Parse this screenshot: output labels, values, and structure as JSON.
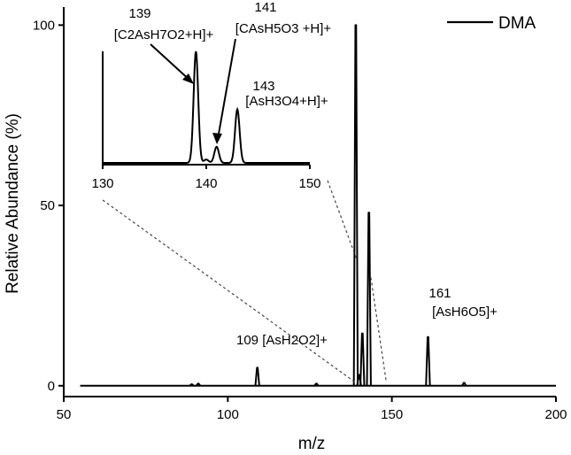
{
  "chart_data": {
    "type": "line",
    "xlabel": "m/z",
    "ylabel": "Relative Abundance (%)",
    "xlim": [
      50,
      200
    ],
    "ylim": [
      -3,
      105
    ],
    "xticks": [
      50,
      100,
      150,
      200
    ],
    "yticks": [
      0,
      50,
      100
    ],
    "grid": false,
    "legend_position": "top-right",
    "series": [
      {
        "name": "DMA",
        "color": "#000000",
        "peaks": [
          {
            "x": 89.0,
            "y": 0.4
          },
          {
            "x": 91.0,
            "y": 0.6
          },
          {
            "x": 109.0,
            "y": 5.0
          },
          {
            "x": 127.0,
            "y": 0.6
          },
          {
            "x": 139.0,
            "y": 100.0
          },
          {
            "x": 140.0,
            "y": 3.0
          },
          {
            "x": 141.0,
            "y": 14.5
          },
          {
            "x": 143.0,
            "y": 48.0
          },
          {
            "x": 161.0,
            "y": 13.5
          },
          {
            "x": 172.0,
            "y": 0.8
          }
        ]
      }
    ],
    "annotations": [
      {
        "mass": "109",
        "formula": "[AsH2O2]+"
      },
      {
        "mass": "161",
        "formula": "[AsH6O5]+"
      }
    ],
    "inset": {
      "xlim": [
        130,
        150
      ],
      "xticks": [
        130,
        140,
        150
      ],
      "annotations": [
        {
          "mass": "139",
          "formula": "[C2AsH7O2+H]+"
        },
        {
          "mass": "141",
          "formula": "[CAsH5O3 +H]+"
        },
        {
          "mass": "143",
          "formula": "[AsH3O4+H]+"
        }
      ]
    }
  }
}
